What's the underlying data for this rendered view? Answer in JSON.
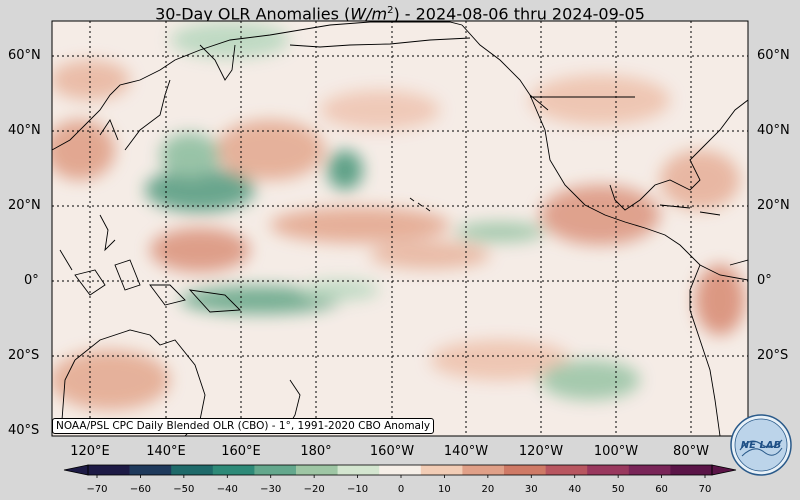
{
  "title": {
    "prefix": "30-Day OLR Anomalies (",
    "unit_base": "W/m",
    "unit_exp": "2",
    "suffix": ") - 2024-08-06 thru 2024-09-05"
  },
  "lat_labels": [
    "60°N",
    "40°N",
    "20°N",
    "0°",
    "20°S",
    "40°S"
  ],
  "lon_labels": [
    "120°E",
    "140°E",
    "160°E",
    "180°",
    "160°W",
    "140°W",
    "120°W",
    "100°W",
    "80°W"
  ],
  "colorbar": {
    "ticks": [
      "−70",
      "−60",
      "−50",
      "−40",
      "−30",
      "−20",
      "−10",
      "0",
      "10",
      "20",
      "30",
      "40",
      "50",
      "60",
      "70"
    ],
    "colors": [
      "#1d1a45",
      "#1f3a5c",
      "#1f6a6a",
      "#2e8a78",
      "#64a88d",
      "#9ec6a4",
      "#d4e6d0",
      "#f6efe8",
      "#f2cdb6",
      "#e0a088",
      "#cf7a66",
      "#b85660",
      "#99385e",
      "#792558",
      "#5a1447"
    ]
  },
  "credit": "NOAA/PSL CPC Daily Blended OLR (CBO) - 1°, 1991-2020 CBO Anomaly",
  "logo_text": "NE LAB"
}
